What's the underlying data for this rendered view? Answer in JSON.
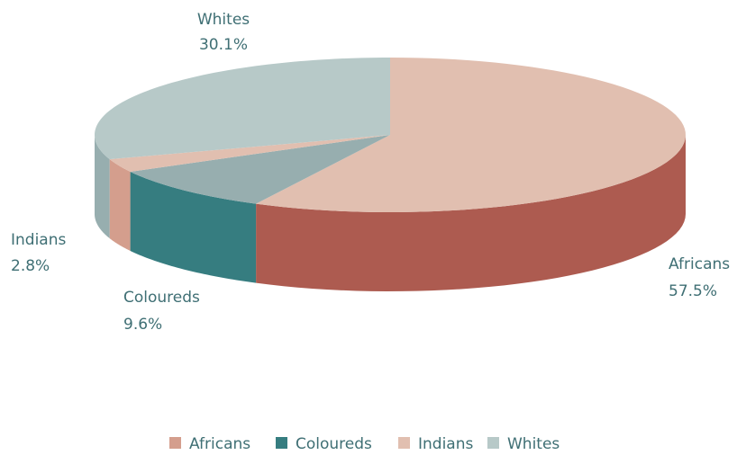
{
  "chart_data": {
    "type": "pie",
    "style": "3d-exploded-none",
    "categories": [
      "Africans",
      "Coloureds",
      "Indians",
      "Whites"
    ],
    "values": [
      57.5,
      9.6,
      2.8,
      30.1
    ],
    "data_labels": {
      "Africans": {
        "name": "Africans",
        "value": "57.5%"
      },
      "Coloureds": {
        "name": "Coloureds",
        "value": "9.6%"
      },
      "Indians": {
        "name": "Indians",
        "value": "2.8%"
      },
      "Whites": {
        "name": "Whites",
        "value": "30.1%"
      }
    },
    "legend": {
      "position": "bottom",
      "entries": [
        "Africans",
        "Coloureds",
        "Indians",
        "Whites"
      ]
    },
    "colors": {
      "Africans": {
        "top": "#e1bfb0",
        "side": "#ad5b50",
        "legend": "#d49e8d"
      },
      "Coloureds": {
        "top": "#97aeaf",
        "side": "#367d80",
        "legend": "#367d80"
      },
      "Indians": {
        "top": "#e1bfb0",
        "side": "#d49e8d",
        "legend": "#e1bfb0"
      },
      "Whites": {
        "top": "#b7c9c8",
        "side": "#97aeaf",
        "legend": "#b7c9c8"
      }
    },
    "label_color": "#3f6f74",
    "title": ""
  }
}
